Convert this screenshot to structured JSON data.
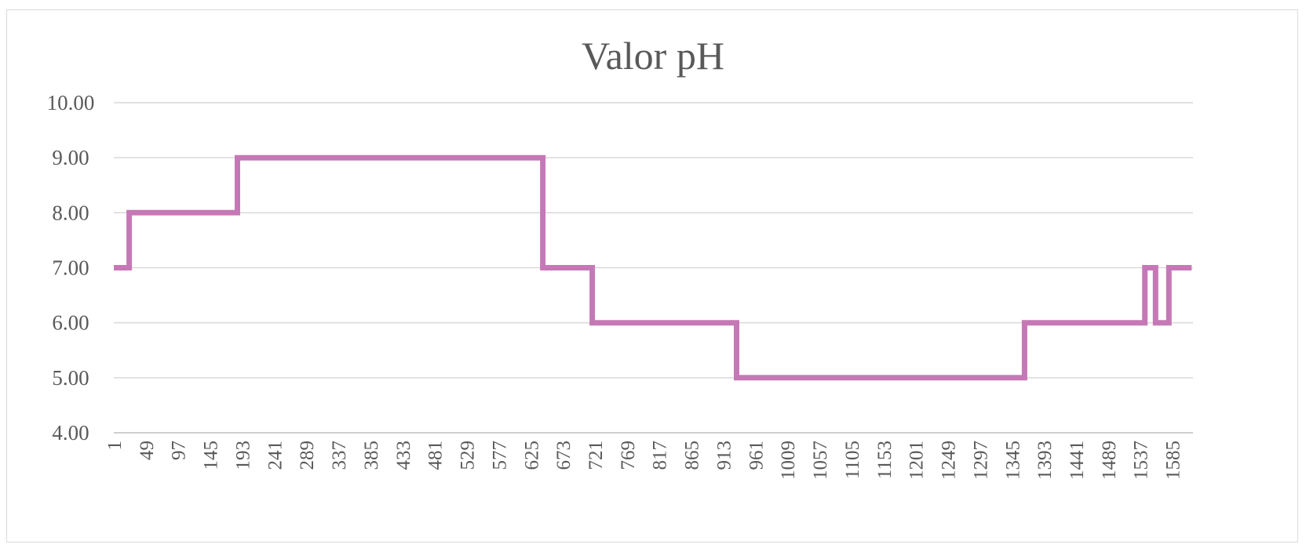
{
  "chart_data": {
    "type": "line",
    "title": "Valor pH",
    "xlabel": "",
    "ylabel": "",
    "ylim": [
      4.0,
      10.0
    ],
    "xlim": [
      1,
      1616
    ],
    "y_ticks": [
      "4.00",
      "5.00",
      "6.00",
      "7.00",
      "8.00",
      "9.00",
      "10.00"
    ],
    "y_tick_values": [
      4,
      5,
      6,
      7,
      8,
      9,
      10
    ],
    "x_tick_labels": [
      "1",
      "49",
      "97",
      "145",
      "193",
      "241",
      "289",
      "337",
      "385",
      "433",
      "481",
      "529",
      "577",
      "625",
      "673",
      "721",
      "769",
      "817",
      "865",
      "913",
      "961",
      "1009",
      "1057",
      "1105",
      "1153",
      "1201",
      "1249",
      "1297",
      "1345",
      "1393",
      "1441",
      "1489",
      "1537",
      "1585"
    ],
    "x_tick_values": [
      1,
      49,
      97,
      145,
      193,
      241,
      289,
      337,
      385,
      433,
      481,
      529,
      577,
      625,
      673,
      721,
      769,
      817,
      865,
      913,
      961,
      1009,
      1057,
      1105,
      1153,
      1201,
      1249,
      1297,
      1345,
      1393,
      1441,
      1489,
      1537,
      1585
    ],
    "grid": true,
    "legend": "none",
    "line_color": "#c678b6",
    "series": [
      {
        "x": [
          1,
          24,
          24,
          186,
          186,
          643,
          643,
          717,
          717,
          933,
          933,
          1364,
          1364,
          1544,
          1544,
          1560,
          1560,
          1580,
          1580,
          1614
        ],
        "values": [
          7,
          7,
          8,
          8,
          9,
          9,
          7,
          7,
          6,
          6,
          5,
          5,
          6,
          6,
          7,
          7,
          6,
          6,
          7,
          7
        ]
      }
    ]
  }
}
